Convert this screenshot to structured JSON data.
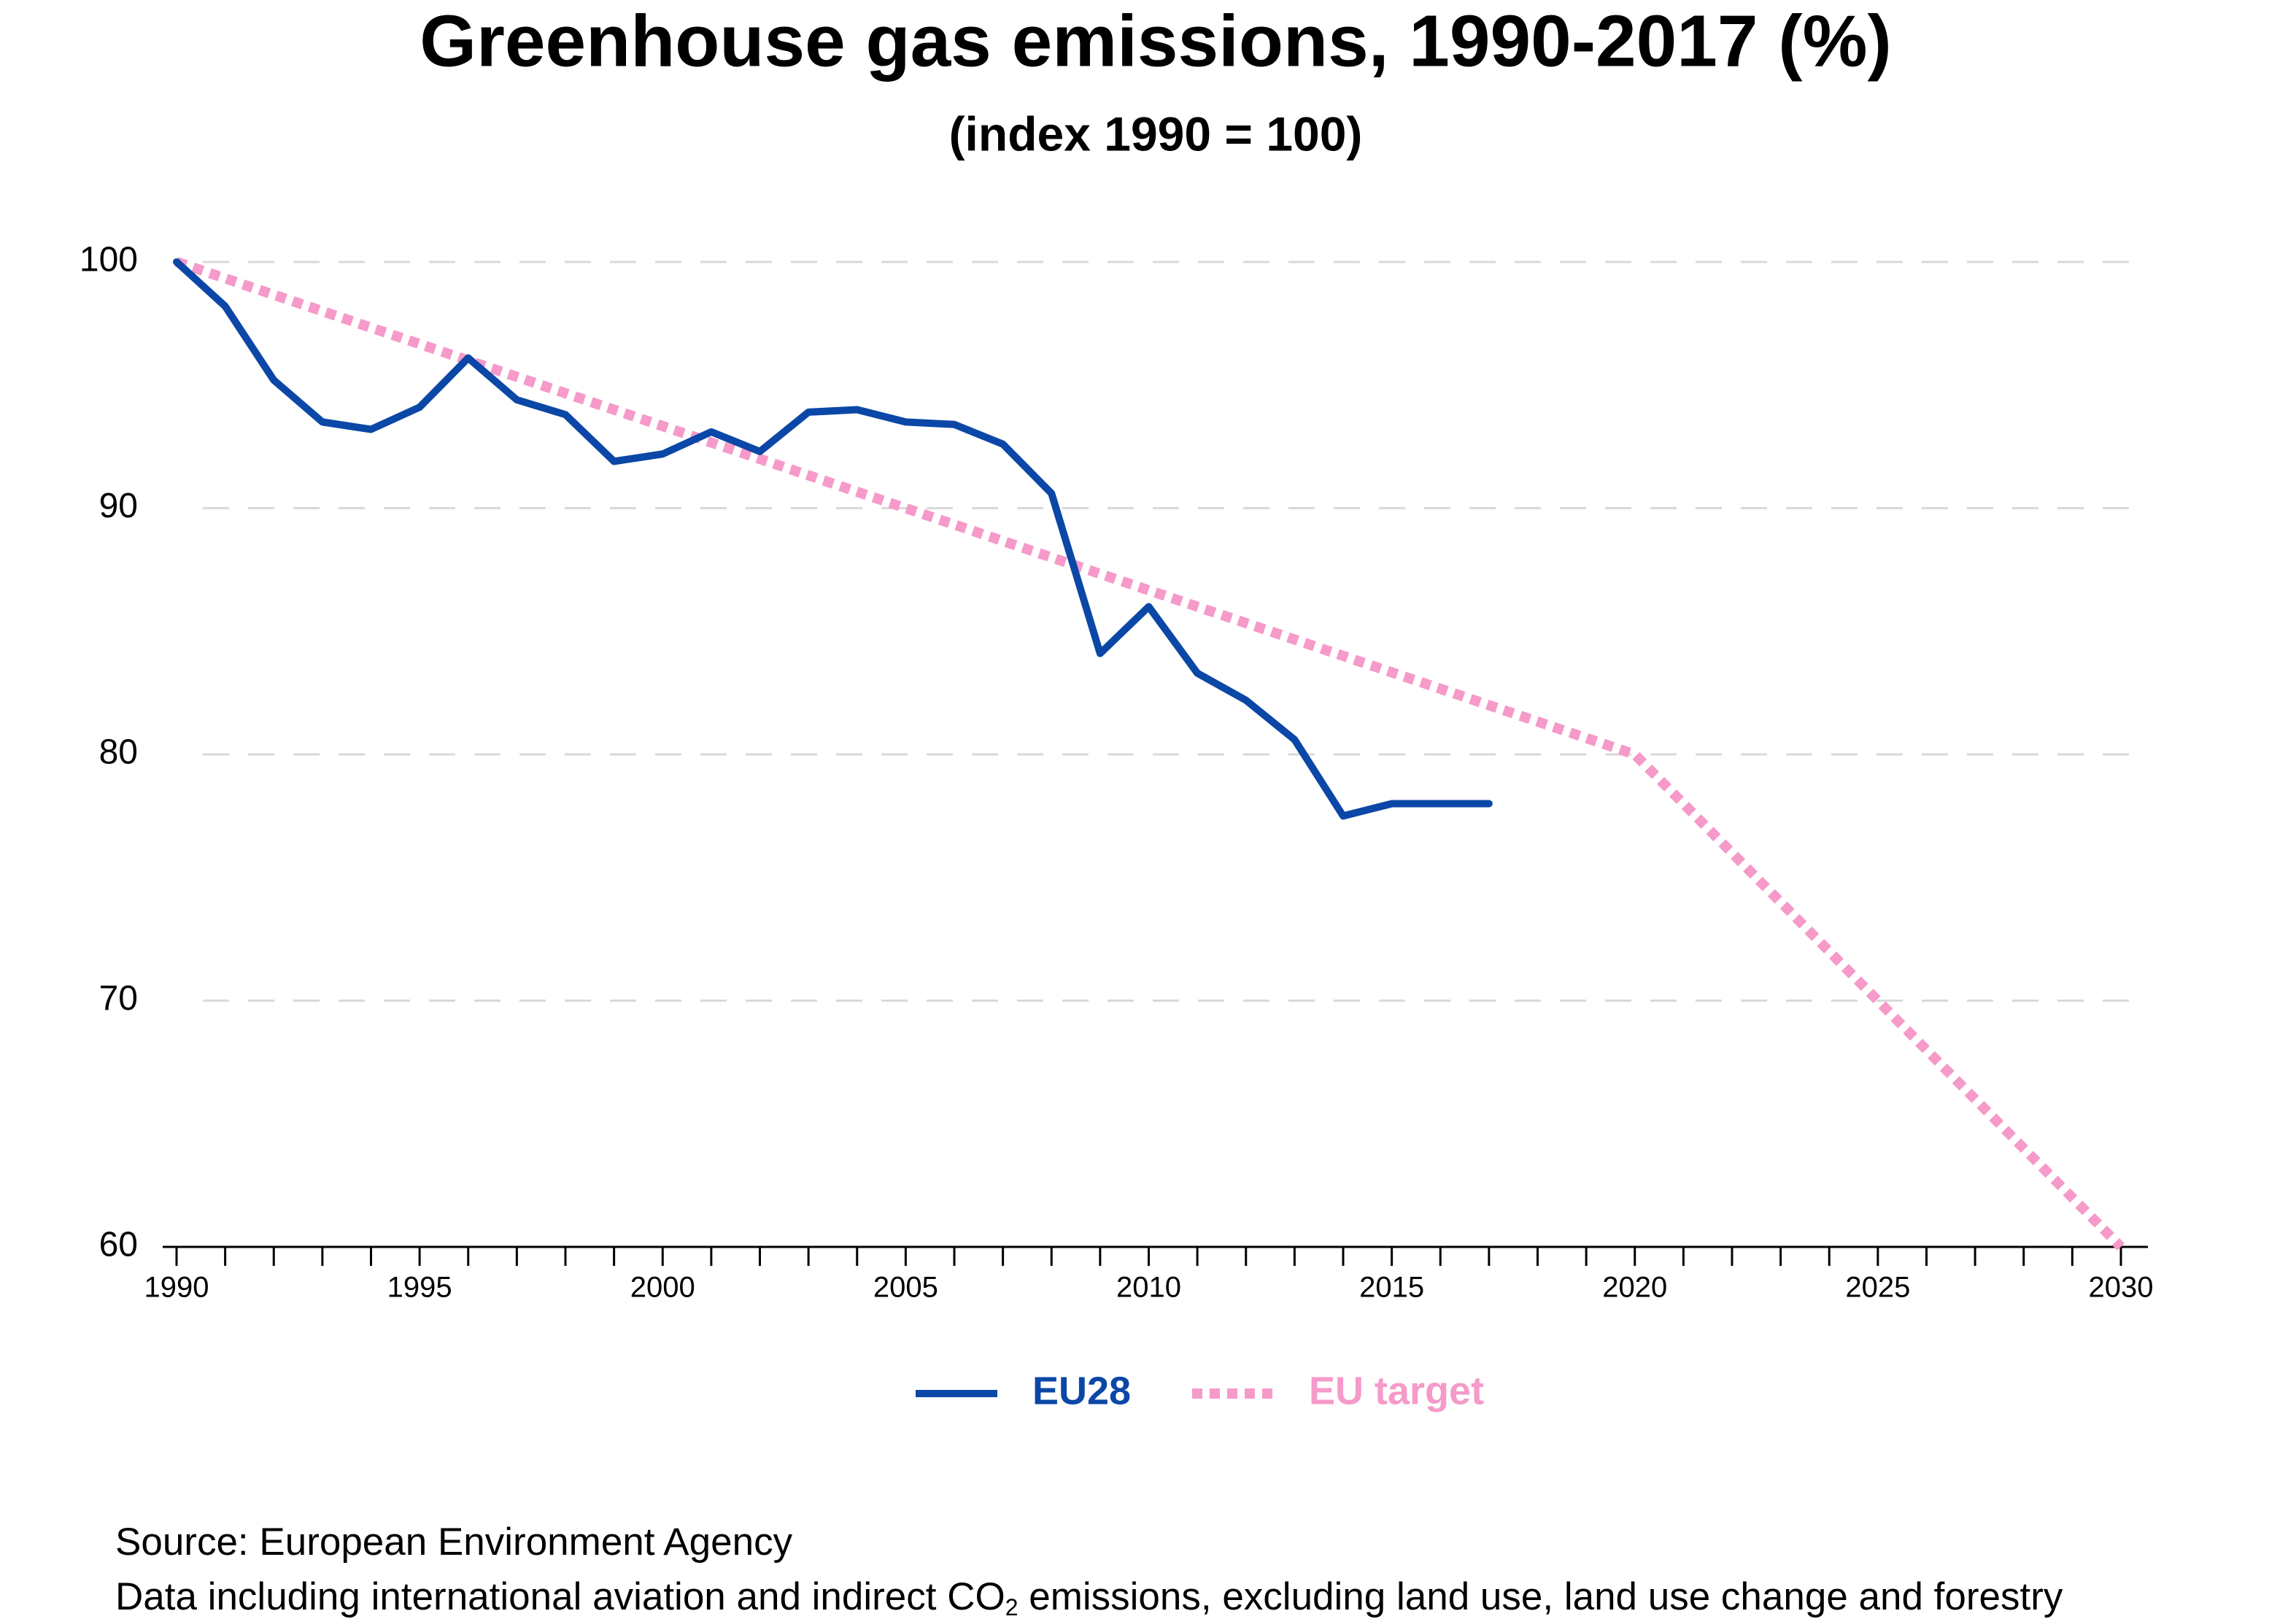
{
  "chart_data": {
    "type": "line",
    "title": "Greenhouse gas emissions, 1990-2017 (%)",
    "subtitle": "(index 1990 = 100)",
    "series": [
      {
        "name": "EU28",
        "color": "#0b47a6",
        "style": "solid",
        "x": [
          1990,
          1991,
          1992,
          1993,
          1994,
          1995,
          1996,
          1997,
          1998,
          1999,
          2000,
          2001,
          2002,
          2003,
          2004,
          2005,
          2006,
          2007,
          2008,
          2009,
          2010,
          2011,
          2012,
          2013,
          2014,
          2015,
          2016,
          2017
        ],
        "values": [
          100,
          98.2,
          95.2,
          93.5,
          93.2,
          94.1,
          96.1,
          94.4,
          93.8,
          91.9,
          92.2,
          93.1,
          92.3,
          93.9,
          94.0,
          93.5,
          93.4,
          92.6,
          90.6,
          84.1,
          86.0,
          83.3,
          82.2,
          80.6,
          77.5,
          78.0,
          78.0,
          78.0
        ]
      },
      {
        "name": "EU target",
        "color": "#f59ac9",
        "style": "dotted",
        "x": [
          1990,
          2020,
          2030
        ],
        "values": [
          100,
          80,
          60
        ]
      }
    ],
    "xlim": [
      1990,
      2030
    ],
    "xticks": [
      1990,
      1995,
      2000,
      2005,
      2010,
      2015,
      2020,
      2025,
      2030
    ],
    "xminorticks": [
      1991,
      1992,
      1993,
      1994,
      1996,
      1997,
      1998,
      1999,
      2001,
      2002,
      2003,
      2004,
      2006,
      2007,
      2008,
      2009,
      2011,
      2012,
      2013,
      2014,
      2016,
      2017,
      2018,
      2019,
      2021,
      2022,
      2023,
      2024,
      2026,
      2027,
      2028,
      2029
    ],
    "ylim": [
      60,
      100
    ],
    "yticks": [
      60,
      70,
      80,
      90,
      100
    ],
    "grid": true,
    "legend": "bottom",
    "source": "Source: European Environment Agency",
    "note": [
      "Data including international aviation and indirect CO",
      "2",
      " emissions, excluding land use, land use change and forestry"
    ]
  }
}
